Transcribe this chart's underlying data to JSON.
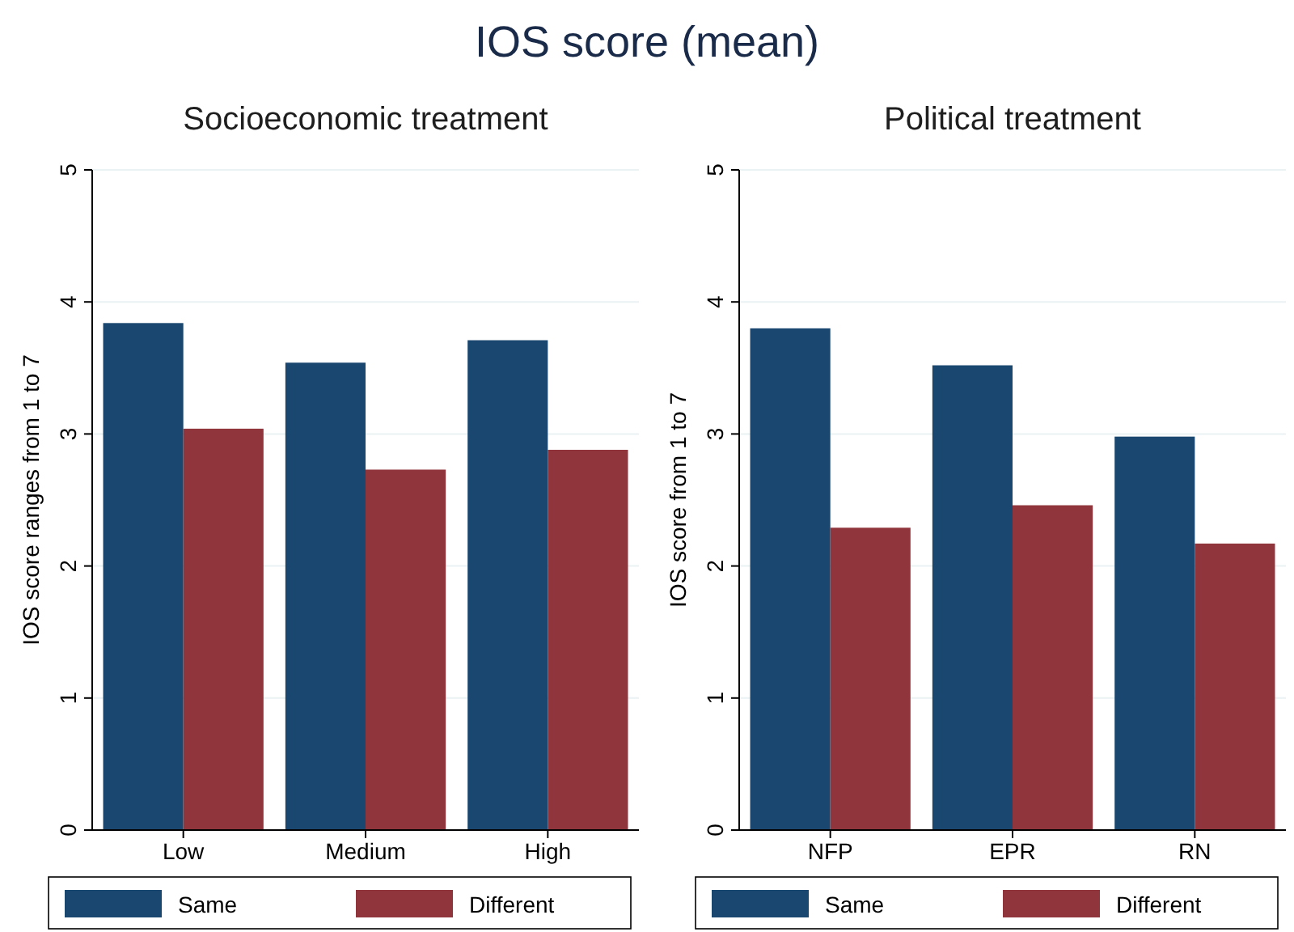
{
  "chart_data": [
    {
      "type": "bar",
      "title": "IOS score (mean)",
      "subtitle": "Socioeconomic treatment",
      "ylabel": "IOS score ranges from 1 to 7",
      "categories": [
        "Low",
        "Medium",
        "High"
      ],
      "series": [
        {
          "name": "Same",
          "color": "#1a476f",
          "values": [
            3.84,
            3.54,
            3.71
          ]
        },
        {
          "name": "Different",
          "color": "#90353b",
          "values": [
            3.04,
            2.73,
            2.88
          ]
        }
      ],
      "ylim": [
        0,
        5
      ],
      "yticks": [
        0,
        1,
        2,
        3,
        4,
        5
      ],
      "grid": "y",
      "legend": "bottom"
    },
    {
      "type": "bar",
      "subtitle": "Political treatment",
      "ylabel": "IOS score from 1 to 7",
      "categories": [
        "NFP",
        "EPR",
        "RN"
      ],
      "series": [
        {
          "name": "Same",
          "color": "#1a476f",
          "values": [
            3.8,
            3.52,
            2.98
          ]
        },
        {
          "name": "Different",
          "color": "#90353b",
          "values": [
            2.29,
            2.46,
            2.17
          ]
        }
      ],
      "ylim": [
        0,
        5
      ],
      "yticks": [
        0,
        1,
        2,
        3,
        4,
        5
      ],
      "grid": "y",
      "legend": "bottom"
    }
  ]
}
